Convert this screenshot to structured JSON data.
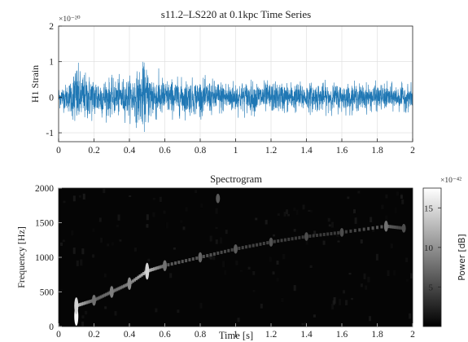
{
  "chart_data": [
    {
      "type": "line",
      "title": "s11.2–LS220 at 0.1kpc Time Series",
      "ylabel": "H1 Strain",
      "xlabel": "",
      "y_exponent": "×10⁻²⁰",
      "xlim": [
        0,
        2
      ],
      "ylim": [
        -1.25,
        2
      ],
      "xticks": [
        "0",
        "0.2",
        "0.4",
        "0.6",
        "0.8",
        "1",
        "1.2",
        "1.4",
        "1.6",
        "1.8",
        "2"
      ],
      "yticks": [
        "-1",
        "0",
        "1",
        "2"
      ],
      "grid": true,
      "color": "#1f77b4",
      "series": [
        {
          "sample_points": [
            0,
            0.05,
            0.08,
            0.09,
            0.1,
            0.12,
            0.2,
            0.3,
            0.4,
            0.45,
            0.48,
            0.5,
            0.6,
            0.8,
            1.0,
            1.2,
            1.4,
            1.6,
            1.8,
            2.0
          ],
          "envelope_upper": [
            0.35,
            0.45,
            0.7,
            1.4,
            1.2,
            0.9,
            0.7,
            0.6,
            0.65,
            0.9,
            1.3,
            1.1,
            0.6,
            0.6,
            0.55,
            0.5,
            0.5,
            0.45,
            0.45,
            0.4
          ],
          "envelope_lower": [
            -0.4,
            -0.5,
            -0.75,
            -1.0,
            -1.1,
            -0.9,
            -0.75,
            -0.65,
            -0.7,
            -0.9,
            -0.95,
            -0.85,
            -0.65,
            -0.6,
            -0.55,
            -0.55,
            -0.5,
            -0.5,
            -0.45,
            -0.45
          ]
        }
      ]
    },
    {
      "type": "heatmap",
      "title": "Spectrogram",
      "xlabel": "Time [s]",
      "ylabel": "Frequency [Hz]",
      "xlim": [
        0,
        2
      ],
      "ylim": [
        0,
        2000
      ],
      "xticks": [
        "0",
        "0.2",
        "0.4",
        "0.6",
        "0.8",
        "1",
        "1.2",
        "1.4",
        "1.6",
        "1.8",
        "2"
      ],
      "yticks": [
        "0",
        "500",
        "1000",
        "1500",
        "2000"
      ],
      "colormap": "gray",
      "colorbar": {
        "label": "Power [dB]",
        "exponent": "×10⁻⁴²",
        "ticks": [
          "5",
          "10",
          "15"
        ],
        "range": [
          0,
          17.5
        ]
      },
      "features": [
        {
          "t": 0.1,
          "f": 150,
          "power": 17
        },
        {
          "t": 0.1,
          "f": 300,
          "power": 14
        },
        {
          "t": 0.2,
          "f": 380,
          "power": 6
        },
        {
          "t": 0.3,
          "f": 500,
          "power": 7
        },
        {
          "t": 0.4,
          "f": 620,
          "power": 8
        },
        {
          "t": 0.5,
          "f": 800,
          "power": 14
        },
        {
          "t": 0.6,
          "f": 880,
          "power": 6
        },
        {
          "t": 0.8,
          "f": 1000,
          "power": 5
        },
        {
          "t": 1.0,
          "f": 1120,
          "power": 4
        },
        {
          "t": 1.2,
          "f": 1220,
          "power": 3.5
        },
        {
          "t": 1.4,
          "f": 1300,
          "power": 3
        },
        {
          "t": 1.6,
          "f": 1360,
          "power": 3
        },
        {
          "t": 1.85,
          "f": 1450,
          "power": 6
        },
        {
          "t": 1.95,
          "f": 1420,
          "power": 3
        },
        {
          "t": 0.9,
          "f": 1850,
          "power": 4
        }
      ]
    }
  ]
}
